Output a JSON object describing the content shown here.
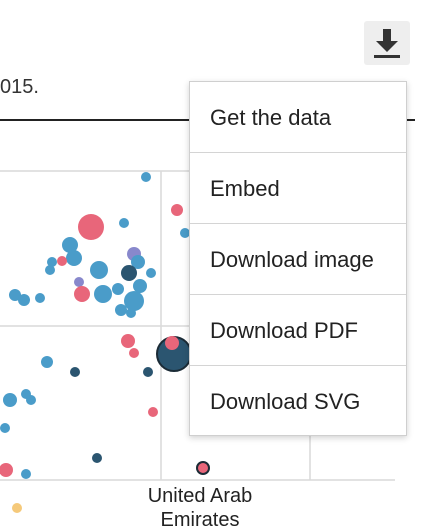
{
  "caption_fragment": "015.",
  "download_button": {
    "icon": "download-icon"
  },
  "menu": {
    "items": [
      {
        "label": "Get the data"
      },
      {
        "label": "Embed"
      },
      {
        "label": "Download image"
      },
      {
        "label": "Download PDF"
      },
      {
        "label": "Download SVG"
      }
    ]
  },
  "chart_data": {
    "type": "scatter",
    "colors": {
      "blue": "#4a9cc9",
      "navy": "#2b5570",
      "red": "#e8667a",
      "purple": "#8888cc",
      "yellow": "#f5c97a"
    },
    "point_label": "United Arab Emirates",
    "grid": true
  }
}
